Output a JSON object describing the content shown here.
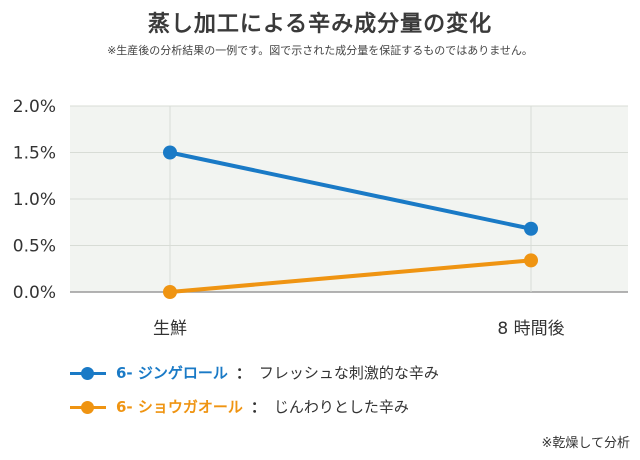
{
  "header": {
    "title": "蒸し加工による辛み成分量の変化",
    "subtitle": "※生産後の分析結果の一例です。図で示された成分量を保証するものではありません。"
  },
  "chart_data": {
    "type": "line",
    "categories": [
      "生鮮",
      "8 時間後"
    ],
    "series": [
      {
        "name": "6- ジンゲロール",
        "description": "フレッシュな刺激的な辛み",
        "values": [
          0.015,
          0.0068
        ],
        "color": "#1a7ac6"
      },
      {
        "name": "6- ショウガオール",
        "description": "じんわりとした辛み",
        "values": [
          0.0,
          0.0034
        ],
        "color": "#ef9412"
      }
    ],
    "ylim": [
      0,
      0.02
    ],
    "yticks": [
      "0.0%",
      "0.5%",
      "1.0%",
      "1.5%",
      "2.0%"
    ],
    "grid": true,
    "legend_position": "bottom-left",
    "background": "#f2f4f1"
  },
  "legend_separator": "：",
  "footnote": "※乾燥して分析"
}
